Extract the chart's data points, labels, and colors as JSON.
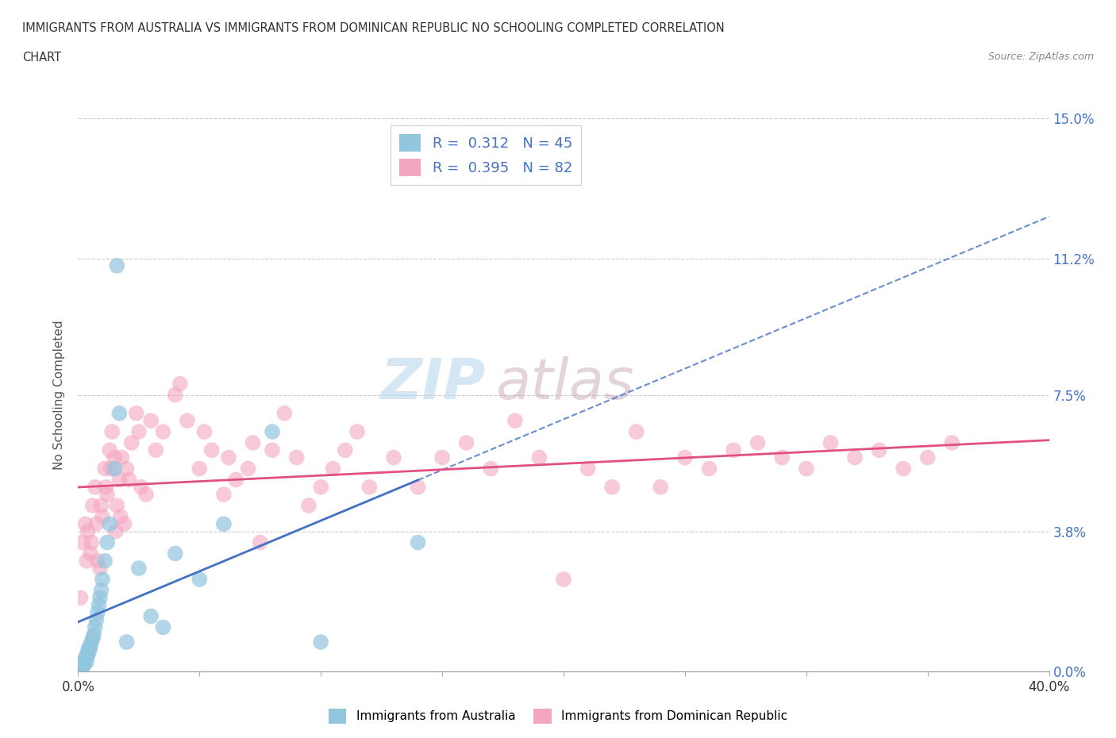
{
  "title_line1": "IMMIGRANTS FROM AUSTRALIA VS IMMIGRANTS FROM DOMINICAN REPUBLIC NO SCHOOLING COMPLETED CORRELATION",
  "title_line2": "CHART",
  "source": "Source: ZipAtlas.com",
  "ylabel": "No Schooling Completed",
  "ytick_vals": [
    0.0,
    3.8,
    7.5,
    11.2,
    15.0
  ],
  "ytick_labels": [
    "0.0%",
    "3.8%",
    "7.5%",
    "11.2%",
    "15.0%"
  ],
  "xlim": [
    0.0,
    40.0
  ],
  "ylim": [
    0.0,
    15.0
  ],
  "legend_R_australia": "0.312",
  "legend_N_australia": "45",
  "legend_R_dominican": "0.395",
  "legend_N_dominican": "82",
  "color_australia": "#92C5DE",
  "color_australia_line": "#4472C4",
  "color_dominican": "#F4A6C0",
  "color_dominican_line": "#E05080",
  "watermark_zip": "ZIP",
  "watermark_atlas": "atlas",
  "australia_x": [
    0.05,
    0.08,
    0.1,
    0.12,
    0.15,
    0.18,
    0.2,
    0.22,
    0.25,
    0.28,
    0.3,
    0.32,
    0.35,
    0.38,
    0.4,
    0.42,
    0.45,
    0.48,
    0.5,
    0.55,
    0.6,
    0.65,
    0.7,
    0.75,
    0.8,
    0.85,
    0.9,
    0.95,
    1.0,
    1.1,
    1.2,
    1.3,
    1.5,
    1.7,
    2.0,
    2.5,
    3.0,
    3.5,
    4.0,
    5.0,
    6.0,
    8.0,
    10.0,
    14.0,
    1.6
  ],
  "australia_y": [
    0.1,
    0.15,
    0.05,
    0.2,
    0.08,
    0.12,
    0.25,
    0.18,
    0.3,
    0.22,
    0.35,
    0.4,
    0.28,
    0.5,
    0.45,
    0.6,
    0.55,
    0.7,
    0.65,
    0.8,
    0.9,
    1.0,
    1.2,
    1.4,
    1.6,
    1.8,
    2.0,
    2.2,
    2.5,
    3.0,
    3.5,
    4.0,
    5.5,
    7.0,
    0.8,
    2.8,
    1.5,
    1.2,
    3.2,
    2.5,
    4.0,
    6.5,
    0.8,
    3.5,
    11.0
  ],
  "dominican_x": [
    0.1,
    0.2,
    0.3,
    0.4,
    0.5,
    0.6,
    0.7,
    0.8,
    0.9,
    1.0,
    1.1,
    1.2,
    1.3,
    1.4,
    1.5,
    1.6,
    1.7,
    1.8,
    1.9,
    2.0,
    2.2,
    2.4,
    2.6,
    2.8,
    3.0,
    3.5,
    4.0,
    4.5,
    5.0,
    5.5,
    6.0,
    6.5,
    7.0,
    7.5,
    8.0,
    8.5,
    9.0,
    9.5,
    10.0,
    10.5,
    11.0,
    11.5,
    12.0,
    13.0,
    14.0,
    15.0,
    16.0,
    17.0,
    18.0,
    19.0,
    20.0,
    21.0,
    22.0,
    23.0,
    24.0,
    25.0,
    26.0,
    27.0,
    28.0,
    29.0,
    30.0,
    31.0,
    32.0,
    33.0,
    34.0,
    35.0,
    36.0,
    0.35,
    0.55,
    0.75,
    0.95,
    1.15,
    1.35,
    1.55,
    1.75,
    2.1,
    2.5,
    3.2,
    4.2,
    5.2,
    6.2,
    7.2
  ],
  "dominican_y": [
    2.0,
    3.5,
    4.0,
    3.8,
    3.2,
    4.5,
    5.0,
    3.0,
    2.8,
    4.2,
    5.5,
    4.8,
    6.0,
    6.5,
    5.8,
    4.5,
    5.2,
    5.8,
    4.0,
    5.5,
    6.2,
    7.0,
    5.0,
    4.8,
    6.8,
    6.5,
    7.5,
    6.8,
    5.5,
    6.0,
    4.8,
    5.2,
    5.5,
    3.5,
    6.0,
    7.0,
    5.8,
    4.5,
    5.0,
    5.5,
    6.0,
    6.5,
    5.0,
    5.8,
    5.0,
    5.8,
    6.2,
    5.5,
    6.8,
    5.8,
    2.5,
    5.5,
    5.0,
    6.5,
    5.0,
    5.8,
    5.5,
    6.0,
    6.2,
    5.8,
    5.5,
    6.2,
    5.8,
    6.0,
    5.5,
    5.8,
    6.2,
    3.0,
    3.5,
    4.0,
    4.5,
    5.0,
    5.5,
    3.8,
    4.2,
    5.2,
    6.5,
    6.0,
    7.8,
    6.5,
    5.8,
    6.2
  ]
}
